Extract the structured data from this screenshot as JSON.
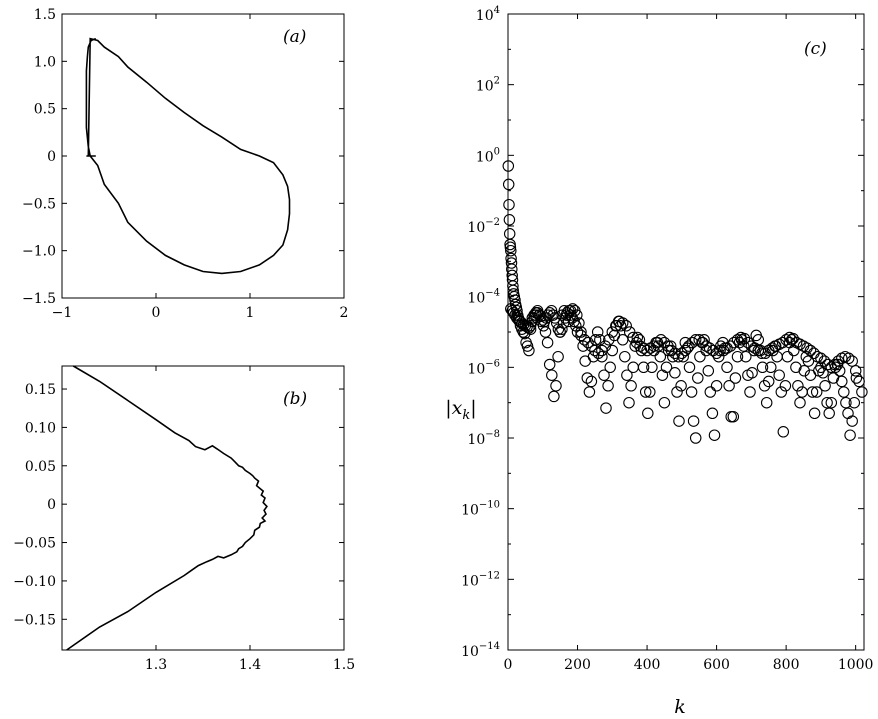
{
  "chart_data": [
    {
      "type": "line",
      "panel_label": "(a)",
      "xlim": [
        -1,
        2
      ],
      "ylim": [
        -1.5,
        1.5
      ],
      "x_ticks": [
        -1,
        0,
        1,
        2
      ],
      "x_tick_labels": [
        "−1",
        "0",
        "1",
        "2"
      ],
      "y_ticks": [
        1.5,
        1.0,
        0.5,
        0,
        -0.5,
        -1.0,
        -1.5
      ],
      "y_tick_labels": [
        "1.5",
        "1.0",
        "0.5",
        "0",
        "−0.5",
        "−1.0",
        "−1.5"
      ],
      "series": [
        {
          "x": [
            -0.64,
            -0.69,
            -0.72,
            -0.73,
            -0.74,
            -0.74,
            -0.74,
            -0.74,
            -0.72,
            -0.7,
            -0.62,
            -0.55,
            -0.4,
            -0.3,
            -0.1,
            0.1,
            0.3,
            0.5,
            0.7,
            0.9,
            1.1,
            1.25,
            1.35,
            1.4,
            1.42,
            1.42,
            1.4,
            1.35,
            1.25,
            1.1,
            0.9,
            0.7,
            0.5,
            0.3,
            0.1,
            -0.1,
            -0.3,
            -0.4,
            -0.55,
            -0.62,
            -0.7,
            -0.72,
            -0.74,
            -0.74,
            -0.74,
            -0.74,
            -0.73,
            -0.72,
            -0.69,
            -0.64
          ],
          "y": [
            1.24,
            1.22,
            1.15,
            1.05,
            0.9,
            0.7,
            0.5,
            0.3,
            0.1,
            0.0,
            -0.1,
            -0.3,
            -0.5,
            -0.7,
            -0.9,
            -1.05,
            -1.15,
            -1.22,
            -1.24,
            -1.22,
            -1.15,
            -1.05,
            -0.94,
            -0.78,
            -0.61,
            -0.46,
            -0.32,
            -0.2,
            -0.07,
            0.0,
            0.07,
            0.2,
            0.32,
            0.46,
            0.61,
            0.78,
            0.94,
            1.05,
            1.15,
            1.22,
            1.24,
            0.0,
            0.0,
            0.0,
            0.0,
            0.0,
            0.0,
            0.0,
            0.0,
            0.0
          ]
        }
      ]
    },
    {
      "type": "line",
      "panel_label": "(b)",
      "xlim": [
        1.2,
        1.5
      ],
      "ylim": [
        -0.19,
        0.18
      ],
      "x_ticks": [
        1.3,
        1.4,
        1.5
      ],
      "x_tick_labels": [
        "1.3",
        "1.4",
        "1.5"
      ],
      "y_ticks": [
        0.15,
        0.1,
        0.05,
        0,
        -0.05,
        -0.1,
        -0.15
      ],
      "y_tick_labels": [
        "0.15",
        "0.10",
        "0.05",
        "0",
        "−0.05",
        "−0.10",
        "−0.15"
      ],
      "series": [
        {
          "x": [
            1.212,
            1.24,
            1.27,
            1.3,
            1.32,
            1.335,
            1.342,
            1.352,
            1.36,
            1.365,
            1.372,
            1.38,
            1.384,
            1.388,
            1.392,
            1.395,
            1.4,
            1.403,
            1.405,
            1.409,
            1.407,
            1.411,
            1.414,
            1.412,
            1.416,
            1.414,
            1.418,
            1.415,
            1.417,
            1.413,
            1.416,
            1.411,
            1.41,
            1.405,
            1.404,
            1.4,
            1.395,
            1.392,
            1.388,
            1.386,
            1.38,
            1.372,
            1.366,
            1.36,
            1.354,
            1.345,
            1.338,
            1.33,
            1.3,
            1.27,
            1.24,
            1.205
          ],
          "y": [
            0.18,
            0.16,
            0.135,
            0.11,
            0.093,
            0.083,
            0.075,
            0.071,
            0.076,
            0.072,
            0.066,
            0.06,
            0.055,
            0.05,
            0.048,
            0.044,
            0.04,
            0.037,
            0.034,
            0.03,
            0.024,
            0.02,
            0.017,
            0.012,
            0.008,
            0.002,
            -0.003,
            -0.008,
            -0.013,
            -0.018,
            -0.022,
            -0.025,
            -0.03,
            -0.034,
            -0.04,
            -0.045,
            -0.05,
            -0.055,
            -0.058,
            -0.062,
            -0.066,
            -0.07,
            -0.068,
            -0.072,
            -0.075,
            -0.08,
            -0.086,
            -0.093,
            -0.115,
            -0.14,
            -0.16,
            -0.19
          ]
        }
      ]
    },
    {
      "type": "scatter",
      "panel_label": "(c)",
      "xlabel": "k",
      "ylabel": "|x",
      "ylabel_sub": "k",
      "ylabel_end": "|",
      "yscale": "log",
      "xlim": [
        0,
        1024
      ],
      "ylim_exp": [
        -14,
        4
      ],
      "x_ticks": [
        0,
        200,
        400,
        600,
        800,
        1000
      ],
      "x_tick_labels": [
        "0",
        "200",
        "400",
        "600",
        "800",
        "1000"
      ],
      "y_ticks_exp": [
        4,
        2,
        0,
        -2,
        -4,
        -6,
        -8,
        -10,
        -12,
        -14
      ],
      "y_tick_base": "10",
      "y_tick_exponents": [
        "4",
        "2",
        "0",
        "−2",
        "−4",
        "−6",
        "−8",
        "−10",
        "−12",
        "−14"
      ],
      "series": [
        {
          "k": [
            1,
            2,
            3,
            4,
            5,
            6,
            7,
            8,
            9,
            10,
            11,
            12,
            13,
            14,
            15,
            16,
            18,
            20,
            22,
            24,
            26,
            28,
            30,
            33,
            36,
            40,
            44,
            48,
            52,
            56,
            60,
            65,
            70,
            75,
            80,
            85,
            90,
            96,
            102,
            108,
            114,
            120,
            126,
            132,
            138,
            144,
            150,
            156,
            162,
            168,
            174,
            180,
            186,
            192,
            198,
            204,
            210,
            216,
            222,
            228,
            234,
            240,
            246,
            252,
            258,
            264,
            270,
            276,
            282,
            288,
            294,
            300,
            306,
            312,
            318,
            324,
            330,
            336,
            342,
            348,
            354,
            360,
            366,
            372,
            378,
            384,
            390,
            396,
            402,
            408,
            414,
            420,
            426,
            432,
            438,
            444,
            450,
            456,
            462,
            468,
            474,
            480,
            486,
            492,
            498,
            504,
            510,
            516,
            522,
            528,
            534,
            540,
            546,
            552,
            558,
            564,
            570,
            576,
            582,
            588,
            594,
            600,
            606,
            612,
            618,
            624,
            630,
            636,
            642,
            648,
            654,
            660,
            666,
            672,
            678,
            684,
            690,
            696,
            702,
            708,
            714,
            720,
            726,
            732,
            738,
            744,
            750,
            756,
            762,
            768,
            774,
            780,
            786,
            792,
            798,
            804,
            810,
            816,
            822,
            828,
            834,
            840,
            846,
            852,
            858,
            864,
            870,
            876,
            882,
            888,
            894,
            900,
            906,
            912,
            918,
            924,
            930,
            936,
            942,
            948,
            954,
            960,
            966,
            972,
            978,
            984,
            990,
            996,
            1002,
            1008,
            1014,
            1020
          ],
          "abs_xk": [
            0.5,
            0.15,
            0.04,
            0.015,
            0.006,
            0.003,
            0.0025,
            0.002,
            0.0012,
            0.0009,
            0.0006,
            0.0004,
            0.0003,
            0.0002,
            0.00015,
            0.00012,
            0.0001,
            8e-05,
            6e-05,
            5e-05,
            4e-05,
            3e-05,
            2.5e-05,
            2e-05,
            1.5e-05,
            1.2e-05,
            1e-05,
            9e-06,
            5e-06,
            4e-06,
            3e-06,
            1.2e-05,
            2.5e-05,
            3e-05,
            3.5e-05,
            4e-05,
            3e-05,
            2e-05,
            1.5e-05,
            1e-05,
            5e-06,
            1.2e-06,
            6e-07,
            1.5e-07,
            3e-07,
            2e-06,
            1e-05,
            3e-05,
            4e-05,
            3e-05,
            2e-05,
            4e-05,
            4.5e-05,
            4e-05,
            3e-05,
            1.8e-05,
            1e-05,
            4e-06,
            1.5e-06,
            5e-07,
            2e-07,
            4e-07,
            2e-06,
            6e-06,
            1e-05,
            6e-06,
            2e-06,
            6e-07,
            7e-08,
            3e-07,
            1e-06,
            3e-06,
            8e-06,
            1.5e-05,
            2e-05,
            1.5e-05,
            6e-06,
            2e-06,
            6e-07,
            1e-07,
            3e-07,
            1e-06,
            4e-06,
            7e-06,
            6e-06,
            3e-06,
            1e-06,
            2e-07,
            5e-08,
            2e-07,
            1e-06,
            3e-06,
            5e-06,
            4e-06,
            2e-06,
            6e-07,
            1e-07,
            1e-06,
            3e-06,
            4e-06,
            2e-06,
            7e-07,
            2e-07,
            3e-08,
            3e-07,
            2e-06,
            5e-06,
            3.5e-06,
            1e-06,
            2e-07,
            3e-08,
            1e-08,
            5e-07,
            2e-06,
            5e-06,
            6e-06,
            3e-06,
            8e-07,
            2e-07,
            5e-08,
            1.2e-08,
            3e-07,
            2e-06,
            4e-06,
            5e-06,
            3.5e-06,
            1e-06,
            3e-07,
            4e-08,
            4e-08,
            5e-07,
            2e-06,
            5e-06,
            6e-06,
            4e-06,
            2e-06,
            6e-07,
            2e-07,
            7e-07,
            3e-06,
            8e-06,
            6e-06,
            3e-06,
            1e-06,
            3e-07,
            1e-07,
            4e-07,
            1e-06,
            3e-06,
            4e-06,
            2e-06,
            6e-07,
            2e-07,
            1.5e-08,
            3e-07,
            2e-06,
            5e-06,
            6e-06,
            3e-06,
            1e-06,
            3e-07,
            1e-07,
            2e-07,
            8e-07,
            2e-06,
            1.5e-06,
            6e-07,
            2e-07,
            5e-08,
            2e-07,
            8e-07,
            1e-06,
            7e-07,
            3e-07,
            1e-07,
            5e-08,
            1e-07,
            5e-07,
            1e-06,
            1.2e-06,
            8e-07,
            4e-07,
            2e-07,
            1e-07,
            5e-08,
            1.2e-08,
            3e-08,
            1e-07,
            5e-07
          ]
        },
        {
          "k": [
            8,
            12,
            16,
            20,
            25,
            30,
            35,
            40,
            45,
            50,
            55,
            60,
            65,
            70,
            75,
            80,
            85,
            90,
            95,
            100,
            105,
            110,
            115,
            120,
            125,
            130,
            135,
            140,
            145,
            150,
            155,
            160,
            165,
            170,
            175,
            180,
            185,
            190,
            195,
            200,
            210,
            220,
            230,
            240,
            250,
            260,
            270,
            280,
            290,
            300,
            310,
            320,
            330,
            340,
            350,
            360,
            370,
            380,
            390,
            400,
            410,
            420,
            430,
            440,
            450,
            460,
            470,
            480,
            490,
            500,
            510,
            520,
            530,
            540,
            550,
            560,
            570,
            580,
            590,
            600,
            610,
            620,
            630,
            640,
            650,
            660,
            670,
            680,
            690,
            700,
            710,
            720,
            730,
            740,
            750,
            760,
            770,
            780,
            790,
            800,
            810,
            820,
            830,
            840,
            850,
            860,
            870,
            880,
            890,
            900,
            910,
            920,
            930,
            940,
            950,
            960,
            970,
            980,
            990,
            1000,
            1010,
            1018
          ],
          "abs_xk": [
            4.5e-05,
            4e-05,
            3.5e-05,
            3e-05,
            2.5e-05,
            2.2e-05,
            2e-05,
            1.8e-05,
            1.6e-05,
            1.5e-05,
            1.4e-05,
            1.3e-05,
            1.5e-05,
            2e-05,
            2.5e-05,
            3e-05,
            3.5e-05,
            3e-05,
            2.8e-05,
            2.2e-05,
            2e-05,
            2.5e-05,
            3e-05,
            3.5e-05,
            4e-05,
            3e-05,
            2.5e-05,
            1.8e-05,
            1.2e-05,
            1e-05,
            1.2e-05,
            1.8e-05,
            2.5e-05,
            3.5e-05,
            4e-05,
            3e-05,
            2.5e-05,
            2e-05,
            1.5e-05,
            1e-05,
            8e-06,
            6e-06,
            5e-06,
            4e-06,
            3e-06,
            2.5e-06,
            3e-06,
            4e-06,
            6e-06,
            1e-05,
            1.5e-05,
            2e-05,
            1.8e-05,
            1.5e-05,
            1e-05,
            7e-06,
            5e-06,
            4e-06,
            3.5e-06,
            3e-06,
            3.5e-06,
            4e-06,
            5e-06,
            6e-06,
            5e-06,
            4e-06,
            3e-06,
            2.5e-06,
            2e-06,
            2.5e-06,
            3e-06,
            4e-06,
            5e-06,
            6e-06,
            6e-06,
            5e-06,
            4e-06,
            3.5e-06,
            3e-06,
            2.5e-06,
            3e-06,
            3e-06,
            3.5e-06,
            4e-06,
            5e-06,
            6e-06,
            7e-06,
            6.5e-06,
            5e-06,
            4e-06,
            3.5e-06,
            3e-06,
            2.5e-06,
            2.5e-06,
            3e-06,
            3.5e-06,
            4e-06,
            4.5e-06,
            5e-06,
            6e-06,
            7e-06,
            6.5e-06,
            5e-06,
            4.5e-06,
            4e-06,
            3.5e-06,
            3e-06,
            2.5e-06,
            2e-06,
            1.8e-06,
            1.5e-06,
            1.2e-06,
            1e-06,
            1.2e-06,
            1.5e-06,
            1.8e-06,
            2e-06,
            1.8e-06,
            1.5e-06,
            8e-07,
            4e-07,
            2e-07
          ]
        }
      ]
    }
  ]
}
